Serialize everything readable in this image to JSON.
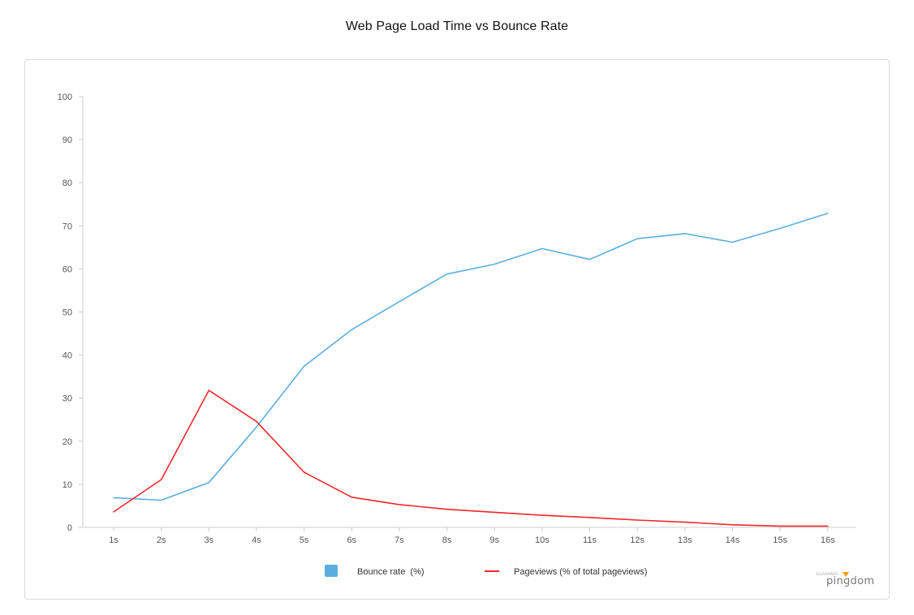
{
  "page": {
    "title": "Web Page Load Time vs Bounce Rate"
  },
  "brand": {
    "name": "pingdom",
    "tagline": "SOLARWINDS",
    "icon": "pingdom-logo-icon",
    "accent": "#f39c12"
  },
  "chart_data": {
    "type": "line",
    "title": "Web Page Load Time vs Bounce Rate",
    "xlabel": "",
    "ylabel": "",
    "categories": [
      "1s",
      "2s",
      "3s",
      "4s",
      "5s",
      "6s",
      "7s",
      "8s",
      "9s",
      "10s",
      "11s",
      "12s",
      "13s",
      "14s",
      "15s",
      "16s"
    ],
    "ylim": [
      0,
      100
    ],
    "yticks": [
      0,
      10,
      20,
      30,
      40,
      50,
      60,
      70,
      80,
      90,
      100
    ],
    "grid": false,
    "legend_position": "bottom",
    "series": [
      {
        "name": "Bounce rate  (%)",
        "color": "#5aaedf",
        "legend_marker": "square",
        "values": [
          6.9,
          6.3,
          10.4,
          23.3,
          37.4,
          45.9,
          52.4,
          58.8,
          61.1,
          64.7,
          62.2,
          67.0,
          68.2,
          66.2,
          69.4,
          72.9
        ]
      },
      {
        "name": "Pageviews (% of total pageviews)",
        "color": "#f2262b",
        "legend_marker": "line",
        "values": [
          3.6,
          11.1,
          31.8,
          24.6,
          12.8,
          7.0,
          5.3,
          4.2,
          3.5,
          2.8,
          2.3,
          1.7,
          1.2,
          0.6,
          0.3,
          0.3
        ]
      }
    ]
  }
}
